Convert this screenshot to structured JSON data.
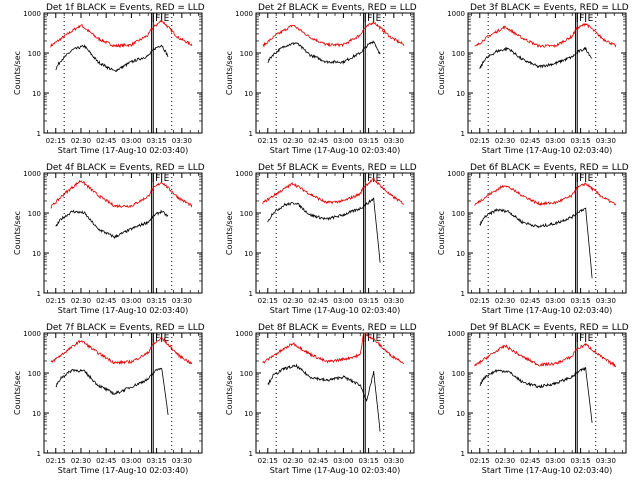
{
  "chart_data": {
    "type": "line",
    "layout": "3x3 grid",
    "scale": "log-y",
    "ylim": [
      1,
      1000
    ],
    "y_ticks": [
      1,
      10,
      100,
      1000
    ],
    "y_tick_labels": [
      "1",
      "10",
      "100",
      "1000"
    ],
    "ylabel": "Counts/sec",
    "xlabel": "Start Time (17-Aug-10 02:03:40)",
    "x_range": [
      "02:08",
      "03:42"
    ],
    "x_ticks": [
      "02:15",
      "02:30",
      "02:45",
      "03:00",
      "03:15",
      "03:30"
    ],
    "dotted_lines": [
      "02:20",
      "03:24"
    ],
    "solid_double_lines": [
      "03:12",
      "03:13"
    ],
    "markers": [
      {
        "time": "03:13",
        "label": "F"
      },
      {
        "time": "03:18",
        "label": "E"
      }
    ],
    "colors": {
      "events": "#000000",
      "lld": "#e00000"
    },
    "panels": [
      {
        "title": "Det 1f BLACK = Events, RED = LLD",
        "series": [
          {
            "name": "LLD",
            "color": "red",
            "x": [
              "02:12",
              "02:20",
              "02:30",
              "02:40",
              "02:50",
              "03:00",
              "03:10",
              "03:12",
              "03:18",
              "03:28",
              "03:36"
            ],
            "values": [
              150,
              260,
              500,
              230,
              150,
              160,
              280,
              400,
              650,
              240,
              160
            ]
          },
          {
            "name": "Events",
            "color": "black",
            "x": [
              "02:15",
              "02:18",
              "02:25",
              "02:32",
              "02:40",
              "02:50",
              "03:00",
              "03:10",
              "03:14",
              "03:18",
              "03:22"
            ],
            "values": [
              40,
              65,
              120,
              150,
              60,
              35,
              60,
              85,
              130,
              160,
              80
            ]
          }
        ]
      },
      {
        "title": "Det 2f BLACK = Events, RED = LLD",
        "series": [
          {
            "name": "LLD",
            "color": "red",
            "x": [
              "02:12",
              "02:20",
              "02:30",
              "02:40",
              "02:50",
              "03:00",
              "03:10",
              "03:12",
              "03:18",
              "03:28",
              "03:36"
            ],
            "values": [
              150,
              280,
              500,
              250,
              160,
              160,
              280,
              400,
              600,
              250,
              160
            ]
          },
          {
            "name": "Events",
            "color": "black",
            "x": [
              "02:15",
              "02:18",
              "02:25",
              "02:32",
              "02:40",
              "02:50",
              "03:00",
              "03:10",
              "03:14",
              "03:18",
              "03:22"
            ],
            "values": [
              60,
              90,
              150,
              180,
              90,
              60,
              60,
              100,
              150,
              200,
              90
            ]
          }
        ]
      },
      {
        "title": "Det 3f BLACK = Events, RED = LLD",
        "series": [
          {
            "name": "LLD",
            "color": "red",
            "x": [
              "02:12",
              "02:20",
              "02:30",
              "02:40",
              "02:50",
              "03:00",
              "03:10",
              "03:12",
              "03:18",
              "03:28",
              "03:36"
            ],
            "values": [
              140,
              260,
              450,
              240,
              150,
              150,
              260,
              380,
              550,
              230,
              150
            ]
          },
          {
            "name": "Events",
            "color": "black",
            "x": [
              "02:15",
              "02:18",
              "02:25",
              "02:32",
              "02:40",
              "02:50",
              "03:00",
              "03:10",
              "03:14",
              "03:18",
              "03:22"
            ],
            "values": [
              40,
              70,
              110,
              130,
              70,
              45,
              55,
              80,
              110,
              130,
              70
            ]
          }
        ]
      },
      {
        "title": "Det 4f BLACK = Events, RED = LLD",
        "series": [
          {
            "name": "LLD",
            "color": "red",
            "x": [
              "02:12",
              "02:20",
              "02:30",
              "02:40",
              "02:50",
              "03:00",
              "03:10",
              "03:12",
              "03:18",
              "03:28",
              "03:36"
            ],
            "values": [
              140,
              300,
              650,
              280,
              150,
              150,
              260,
              380,
              600,
              240,
              150
            ]
          },
          {
            "name": "Events",
            "color": "black",
            "x": [
              "02:15",
              "02:18",
              "02:25",
              "02:32",
              "02:40",
              "02:50",
              "03:00",
              "03:10",
              "03:14",
              "03:18",
              "03:22"
            ],
            "values": [
              45,
              70,
              110,
              100,
              40,
              25,
              40,
              60,
              90,
              110,
              80
            ]
          }
        ]
      },
      {
        "title": "Det 5f BLACK = Events, RED = LLD",
        "series": [
          {
            "name": "LLD",
            "color": "red",
            "x": [
              "02:12",
              "02:20",
              "02:30",
              "02:40",
              "02:50",
              "03:00",
              "03:10",
              "03:12",
              "03:18",
              "03:28",
              "03:36"
            ],
            "values": [
              180,
              300,
              550,
              300,
              180,
              200,
              300,
              450,
              700,
              280,
              170
            ]
          },
          {
            "name": "Events",
            "color": "black",
            "x": [
              "02:15",
              "02:18",
              "02:25",
              "02:32",
              "02:40",
              "02:50",
              "03:00",
              "03:10",
              "03:14",
              "03:18",
              "03:22"
            ],
            "values": [
              60,
              100,
              160,
              180,
              90,
              70,
              90,
              130,
              170,
              230,
              5
            ]
          }
        ]
      },
      {
        "title": "Det 6f BLACK = Events, RED = LLD",
        "series": [
          {
            "name": "LLD",
            "color": "red",
            "x": [
              "02:12",
              "02:20",
              "02:30",
              "02:40",
              "02:50",
              "03:00",
              "03:10",
              "03:12",
              "03:18",
              "03:28",
              "03:36"
            ],
            "values": [
              160,
              280,
              500,
              280,
              170,
              180,
              270,
              400,
              550,
              250,
              160
            ]
          },
          {
            "name": "Events",
            "color": "black",
            "x": [
              "02:15",
              "02:18",
              "02:25",
              "02:32",
              "02:40",
              "02:50",
              "03:00",
              "03:10",
              "03:14",
              "03:18",
              "03:22"
            ],
            "values": [
              50,
              80,
              120,
              110,
              60,
              45,
              55,
              80,
              110,
              130,
              2
            ]
          }
        ]
      },
      {
        "title": "Det 7f BLACK = Events, RED = LLD",
        "series": [
          {
            "name": "LLD",
            "color": "red",
            "x": [
              "02:12",
              "02:20",
              "02:30",
              "02:40",
              "02:50",
              "03:00",
              "03:10",
              "03:12",
              "03:18",
              "03:28",
              "03:36"
            ],
            "values": [
              180,
              320,
              650,
              320,
              180,
              190,
              320,
              480,
              750,
              280,
              170
            ]
          },
          {
            "name": "Events",
            "color": "black",
            "x": [
              "02:15",
              "02:18",
              "02:25",
              "02:32",
              "02:40",
              "02:50",
              "03:00",
              "03:10",
              "03:14",
              "03:18",
              "03:22"
            ],
            "values": [
              45,
              75,
              120,
              110,
              50,
              30,
              45,
              70,
              110,
              140,
              8
            ]
          }
        ]
      },
      {
        "title": "Det 8f BLACK = Events, RED = LLD",
        "series": [
          {
            "name": "LLD",
            "color": "red",
            "x": [
              "02:12",
              "02:20",
              "02:30",
              "02:40",
              "02:50",
              "03:00",
              "03:10",
              "03:12",
              "03:18",
              "03:28",
              "03:36"
            ],
            "values": [
              180,
              300,
              550,
              300,
              190,
              220,
              280,
              1000,
              700,
              280,
              180
            ]
          },
          {
            "name": "Events",
            "color": "black",
            "x": [
              "02:15",
              "02:18",
              "02:25",
              "02:32",
              "02:40",
              "02:50",
              "03:00",
              "03:10",
              "03:14",
              "03:18",
              "03:22"
            ],
            "values": [
              50,
              85,
              130,
              150,
              80,
              65,
              80,
              50,
              20,
              110,
              3
            ]
          }
        ]
      },
      {
        "title": "Det 9f BLACK = Events, RED = LLD",
        "series": [
          {
            "name": "LLD",
            "color": "red",
            "x": [
              "02:12",
              "02:20",
              "02:30",
              "02:40",
              "02:50",
              "03:00",
              "03:10",
              "03:12",
              "03:18",
              "03:28",
              "03:36"
            ],
            "values": [
              150,
              260,
              480,
              260,
              160,
              170,
              260,
              380,
              520,
              240,
              150
            ]
          },
          {
            "name": "Events",
            "color": "black",
            "x": [
              "02:15",
              "02:18",
              "02:25",
              "02:32",
              "02:40",
              "02:50",
              "03:00",
              "03:10",
              "03:14",
              "03:18",
              "03:22"
            ],
            "values": [
              50,
              80,
              115,
              110,
              60,
              45,
              55,
              80,
              110,
              130,
              5
            ]
          }
        ]
      }
    ]
  }
}
